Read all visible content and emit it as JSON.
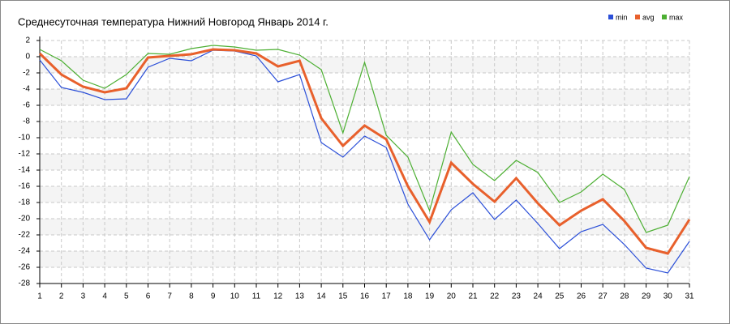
{
  "chart_data": {
    "type": "line",
    "title": "Среднесуточная температура Нижний Новгород  Январь 2014 г.",
    "x": [
      1,
      2,
      3,
      4,
      5,
      6,
      7,
      8,
      9,
      10,
      11,
      12,
      13,
      14,
      15,
      16,
      17,
      18,
      19,
      20,
      21,
      22,
      23,
      24,
      25,
      26,
      27,
      28,
      29,
      30,
      31
    ],
    "xlim": [
      1,
      31
    ],
    "xticks": [
      1,
      2,
      3,
      4,
      5,
      6,
      7,
      8,
      9,
      10,
      11,
      12,
      13,
      14,
      15,
      16,
      17,
      18,
      19,
      20,
      21,
      22,
      23,
      24,
      25,
      26,
      27,
      28,
      29,
      30,
      31
    ],
    "ylim": [
      -28,
      2
    ],
    "yticks": [
      -28,
      -26,
      -24,
      -22,
      -20,
      -18,
      -16,
      -14,
      -12,
      -10,
      -8,
      -6,
      -4,
      -2,
      0,
      2
    ],
    "grid": true,
    "legend": "top-right",
    "series": [
      {
        "name": "min",
        "color": "#2b4fd8",
        "values": [
          -0.4,
          -3.8,
          -4.4,
          -5.3,
          -5.2,
          -1.3,
          -0.2,
          -0.5,
          0.8,
          0.7,
          0.1,
          -3.1,
          -2.2,
          -10.6,
          -12.4,
          -9.8,
          -11.2,
          -18.2,
          -22.6,
          -18.9,
          -16.8,
          -20.1,
          -17.7,
          -20.6,
          -23.7,
          -21.6,
          -20.7,
          -23.2,
          -26.1,
          -26.7,
          -22.8
        ]
      },
      {
        "name": "avg",
        "color": "#e8602c",
        "values": [
          0.4,
          -2.2,
          -3.7,
          -4.4,
          -3.9,
          -0.1,
          0.1,
          0.3,
          0.9,
          0.8,
          0.4,
          -1.2,
          -0.5,
          -7.6,
          -11.0,
          -8.5,
          -10.2,
          -16.0,
          -20.4,
          -13.1,
          -15.7,
          -17.9,
          -15.0,
          -18.1,
          -20.8,
          -19.0,
          -17.6,
          -20.3,
          -23.6,
          -24.3,
          -20.1
        ]
      },
      {
        "name": "max",
        "color": "#4caf32",
        "values": [
          0.9,
          -0.5,
          -2.9,
          -3.9,
          -2.2,
          0.4,
          0.3,
          1.0,
          1.4,
          1.2,
          0.8,
          0.9,
          0.2,
          -1.6,
          -9.4,
          -0.7,
          -9.7,
          -12.4,
          -19.0,
          -9.3,
          -13.3,
          -15.3,
          -12.8,
          -14.3,
          -18.0,
          -16.7,
          -14.5,
          -16.4,
          -21.7,
          -20.8,
          -14.8
        ]
      }
    ]
  }
}
